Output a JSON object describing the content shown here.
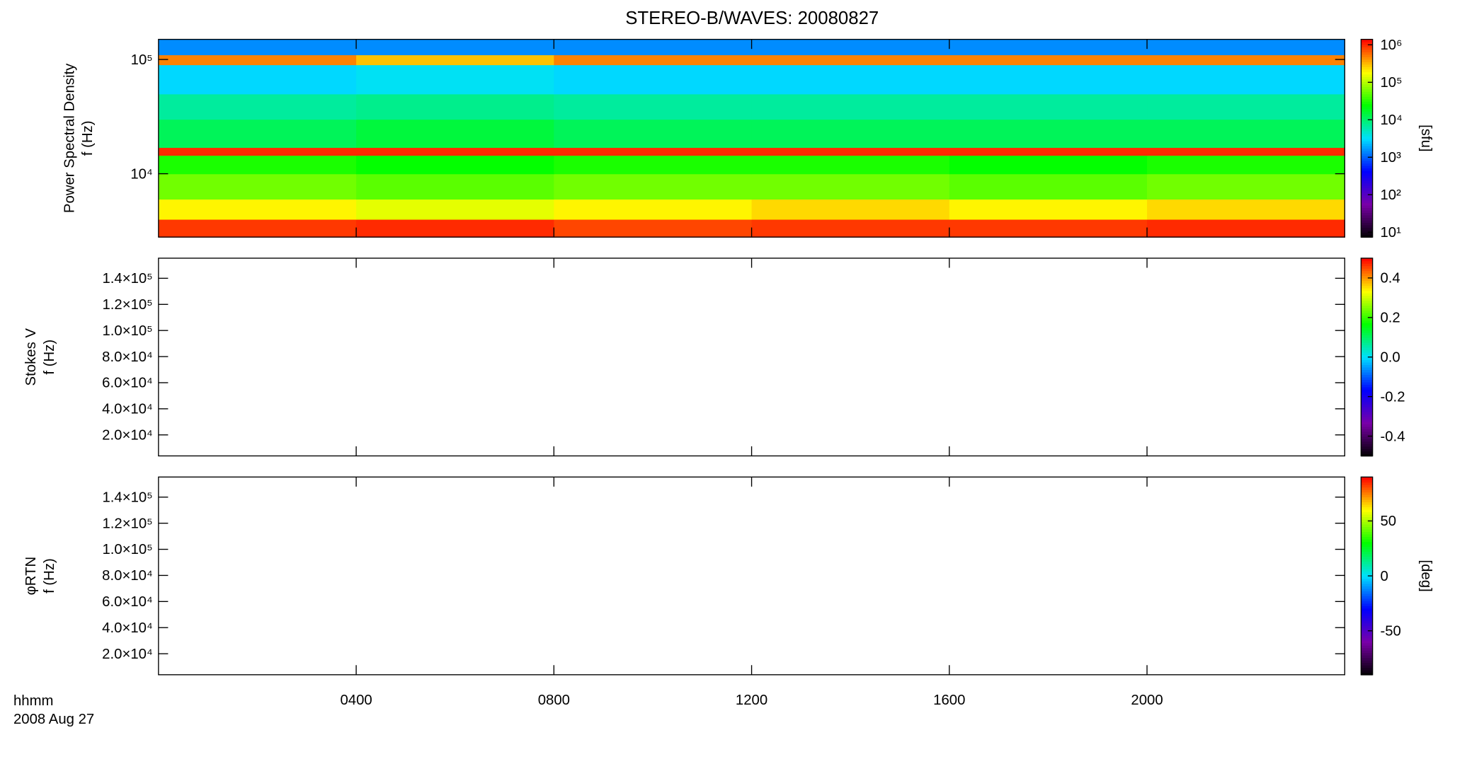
{
  "title": "STEREO-B/WAVES: 20080827",
  "chart_data": [
    {
      "type": "heatmap",
      "ylabel": [
        "Power Spectral Density",
        "f (Hz)"
      ],
      "yscale": "log",
      "ylim": [
        2790,
        150000
      ],
      "yticks": [
        {
          "value": 10000,
          "label": "10⁴"
        },
        {
          "value": 100000,
          "label": "10⁵"
        }
      ],
      "x": [
        0,
        4,
        8,
        12,
        16,
        20,
        24
      ],
      "y": [
        2790,
        4000,
        6000,
        10000,
        14500,
        17000,
        30000,
        50000,
        90000,
        110000,
        150000
      ],
      "values": [
        [
          900000,
          1000000,
          800000,
          900000,
          900000,
          1000000
        ],
        [
          200000,
          150000,
          200000,
          250000,
          200000,
          250000
        ],
        [
          60000,
          50000,
          60000,
          60000,
          50000,
          60000
        ],
        [
          30000,
          25000,
          30000,
          30000,
          25000,
          30000
        ],
        [
          1000000,
          1000000,
          1000000,
          1000000,
          1000000,
          1000000
        ],
        [
          12000,
          15000,
          12000,
          12000,
          12000,
          12000
        ],
        [
          7000,
          8000,
          7000,
          7000,
          7000,
          7000
        ],
        [
          3000,
          3500,
          3000,
          3000,
          3000,
          3000
        ],
        [
          500000,
          300000,
          500000,
          500000,
          500000,
          500000
        ],
        [
          1500,
          1500,
          1500,
          1500,
          1500,
          1500
        ]
      ],
      "colorbar": {
        "label": "[sfu]",
        "scale": "log",
        "lim": [
          7.4,
          1400000
        ],
        "ticks": [
          {
            "value": 10,
            "label": "10¹"
          },
          {
            "value": 100,
            "label": "10²"
          },
          {
            "value": 1000,
            "label": "10³"
          },
          {
            "value": 10000,
            "label": "10⁴"
          },
          {
            "value": 100000,
            "label": "10⁵"
          },
          {
            "value": 1000000,
            "label": "10⁶"
          }
        ],
        "colors": [
          "#000000",
          "#7a00a8",
          "#0000ff",
          "#00e0ff",
          "#00ff00",
          "#ffff00",
          "#ff0000"
        ]
      }
    },
    {
      "type": "heatmap",
      "ylabel": [
        "Stokes V",
        "f (Hz)"
      ],
      "yscale": "linear",
      "ylim": [
        3900,
        155400
      ],
      "yticks": [
        {
          "value": 20000,
          "label": "2.0×10⁴"
        },
        {
          "value": 40000,
          "label": "4.0×10⁴"
        },
        {
          "value": 60000,
          "label": "6.0×10⁴"
        },
        {
          "value": 80000,
          "label": "8.0×10⁴"
        },
        {
          "value": 100000,
          "label": "1.0×10⁵"
        },
        {
          "value": 120000,
          "label": "1.2×10⁵"
        },
        {
          "value": 140000,
          "label": "1.4×10⁵"
        }
      ],
      "colorbar": {
        "scale": "linear",
        "lim": [
          -0.5,
          0.5
        ],
        "ticks": [
          -0.4,
          -0.2,
          {
            "value": 0,
            "label": "0.0"
          },
          0.2,
          0.4
        ],
        "colors": [
          "#000000",
          "#7a00a8",
          "#0000ff",
          "#00e0ff",
          "#00ff00",
          "#ffff00",
          "#ff0000"
        ]
      }
    },
    {
      "type": "heatmap",
      "ylabel": [
        "φRTN",
        "f (Hz)"
      ],
      "yscale": "linear",
      "ylim": [
        3900,
        155400
      ],
      "yticks": [
        {
          "value": 20000,
          "label": "2.0×10⁴"
        },
        {
          "value": 40000,
          "label": "4.0×10⁴"
        },
        {
          "value": 60000,
          "label": "6.0×10⁴"
        },
        {
          "value": 80000,
          "label": "8.0×10⁴"
        },
        {
          "value": 100000,
          "label": "1.0×10⁵"
        },
        {
          "value": 120000,
          "label": "1.2×10⁵"
        },
        {
          "value": 140000,
          "label": "1.4×10⁵"
        }
      ],
      "colorbar": {
        "label": "[deg]",
        "scale": "linear",
        "lim": [
          -90,
          90
        ],
        "ticks": [
          -50,
          0,
          50
        ],
        "colors": [
          "#000000",
          "#7a00a8",
          "#0000ff",
          "#00e0ff",
          "#00ff00",
          "#ffff00",
          "#ff0000"
        ]
      },
      "xlim": [
        0,
        24
      ],
      "xticks": [
        {
          "value": 4,
          "label": "0400"
        },
        {
          "value": 8,
          "label": "0800"
        },
        {
          "value": 12,
          "label": "1200"
        },
        {
          "value": 16,
          "label": "1600"
        },
        {
          "value": 20,
          "label": "2000"
        }
      ],
      "xlabel": [
        "hhmm",
        "2008 Aug 27"
      ]
    }
  ]
}
